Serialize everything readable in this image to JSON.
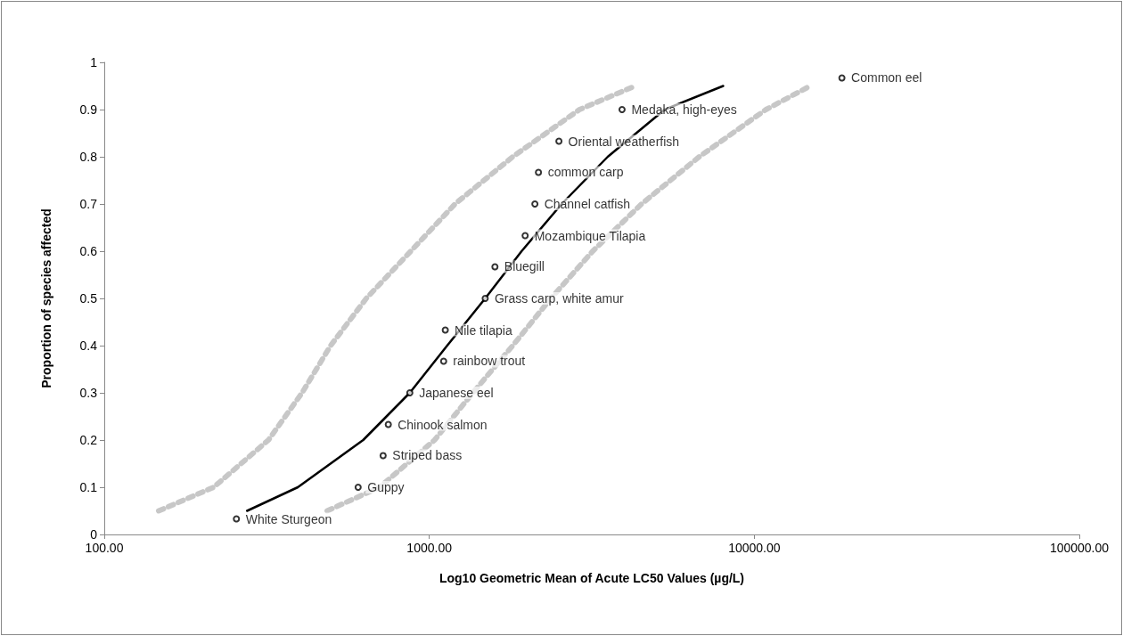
{
  "chart_data": {
    "type": "scatter",
    "xlabel": "Log10 Geometric Mean of Acute LC50 Values (µg/L)",
    "ylabel": "Proportion of species affected",
    "log": "x",
    "grid": false,
    "xlim": [
      100,
      100000
    ],
    "xticks": [
      {
        "value": 100,
        "label": "100.00"
      },
      {
        "value": 1000,
        "label": "1000.00"
      },
      {
        "value": 10000,
        "label": "10000.00"
      },
      {
        "value": 100000,
        "label": "100000.00"
      }
    ],
    "ylim": [
      0,
      1
    ],
    "yticks": [
      0,
      0.1,
      0.2,
      0.3,
      0.4,
      0.5,
      0.6,
      0.7,
      0.8,
      0.9,
      1
    ],
    "series": [
      {
        "color": "#000000",
        "marker": "circle",
        "x": [
          255,
          604,
          721,
          748,
          871,
          1107,
          1120,
          1486,
          1592,
          1972,
          2113,
          2167,
          2505,
          3918,
          18600
        ],
        "values": [
          0.033,
          0.1,
          0.167,
          0.233,
          0.3,
          0.367,
          0.433,
          0.5,
          0.567,
          0.633,
          0.7,
          0.767,
          0.833,
          0.9,
          0.967
        ]
      },
      {
        "type": "line",
        "color": "#000000",
        "marker": "none",
        "line_style": "solid",
        "x": [
          275,
          394,
          626,
          871,
          1135,
          1486,
          1923,
          2554,
          3540,
          5300,
          8020
        ],
        "values": [
          0.05,
          0.1,
          0.2,
          0.3,
          0.4,
          0.5,
          0.6,
          0.7,
          0.8,
          0.9,
          0.95
        ]
      },
      {
        "type": "line",
        "color": "#b4b4b4",
        "marker": "none",
        "line_style": "dotted",
        "x": [
          147,
          217,
          320,
          406,
          497,
          640,
          877,
          1200,
          1806,
          2898,
          4300
        ],
        "values": [
          0.05,
          0.1,
          0.2,
          0.3,
          0.4,
          0.5,
          0.6,
          0.7,
          0.8,
          0.9,
          0.95
        ]
      },
      {
        "type": "line",
        "color": "#b4b4b4",
        "marker": "none",
        "line_style": "dotted",
        "x": [
          485,
          703,
          1038,
          1361,
          1806,
          2366,
          3183,
          4498,
          6770,
          10860,
          14860
        ],
        "values": [
          0.05,
          0.1,
          0.2,
          0.3,
          0.4,
          0.5,
          0.6,
          0.7,
          0.8,
          0.9,
          0.95
        ]
      }
    ],
    "annotations": [
      {
        "text": "White Sturgeon",
        "x": 255,
        "y": 0.033
      },
      {
        "text": "Guppy",
        "x": 604,
        "y": 0.1
      },
      {
        "text": "Striped bass",
        "x": 721,
        "y": 0.167
      },
      {
        "text": "Chinook salmon",
        "x": 748,
        "y": 0.233
      },
      {
        "text": "Japanese eel",
        "x": 871,
        "y": 0.3
      },
      {
        "text": "rainbow trout",
        "x": 1107,
        "y": 0.367
      },
      {
        "text": "Nile tilapia",
        "x": 1120,
        "y": 0.433
      },
      {
        "text": "Grass carp, white amur",
        "x": 1486,
        "y": 0.5
      },
      {
        "text": "Bluegill",
        "x": 1592,
        "y": 0.567
      },
      {
        "text": "Mozambique Tilapia",
        "x": 1972,
        "y": 0.633
      },
      {
        "text": "Channel catfish",
        "x": 2113,
        "y": 0.7
      },
      {
        "text": "common carp",
        "x": 2167,
        "y": 0.767
      },
      {
        "text": "Oriental weatherfish",
        "x": 2505,
        "y": 0.833
      },
      {
        "text": "Medaka, high-eyes",
        "x": 3918,
        "y": 0.9
      },
      {
        "text": "Common eel",
        "x": 18600,
        "y": 0.967
      }
    ]
  }
}
